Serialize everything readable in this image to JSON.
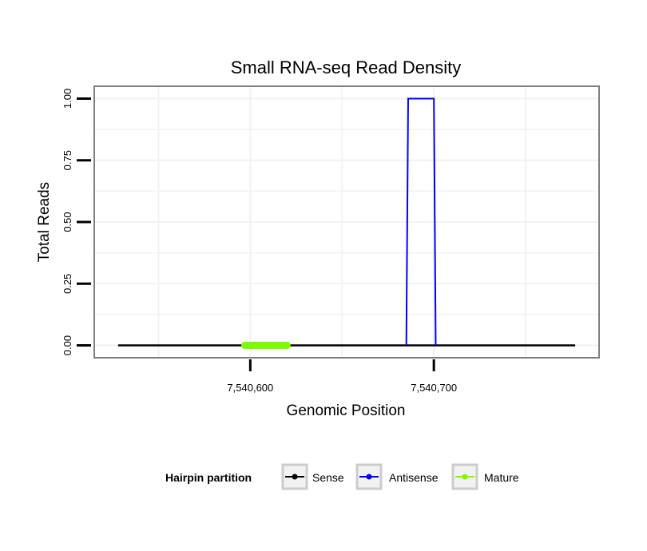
{
  "chart_data": {
    "type": "line",
    "title": "Small RNA-seq Read Density",
    "xlabel": "Genomic Position",
    "ylabel": "Total Reads",
    "xlim": [
      7540515,
      7540790
    ],
    "ylim": [
      -0.05,
      1.05
    ],
    "x_ticks": [
      7540600,
      7540700
    ],
    "x_tick_labels": [
      "7,540,600",
      "7,540,700"
    ],
    "y_ticks": [
      0,
      0.25,
      0.5,
      0.75,
      1.0
    ],
    "y_tick_labels": [
      "0.00",
      "0.25",
      "0.50",
      "0.75",
      "1.00"
    ],
    "grid": true,
    "legend": {
      "title": "Hairpin partition",
      "position": "bottom",
      "entries": [
        {
          "name": "Sense",
          "color": "#000000"
        },
        {
          "name": "Antisense",
          "color": "#0000ff"
        },
        {
          "name": "Mature",
          "color": "#7cfc00"
        }
      ]
    },
    "series": [
      {
        "name": "Sense",
        "color": "#000000",
        "x": [
          7540528,
          7540777
        ],
        "y": [
          0,
          0
        ]
      },
      {
        "name": "Antisense",
        "color": "#0000ff",
        "x": [
          7540685,
          7540686,
          7540700,
          7540701
        ],
        "y": [
          0,
          1,
          1,
          0
        ]
      },
      {
        "name": "Mature",
        "color": "#7cfc00",
        "x": [
          7540597,
          7540620
        ],
        "y": [
          0,
          0
        ]
      }
    ]
  }
}
